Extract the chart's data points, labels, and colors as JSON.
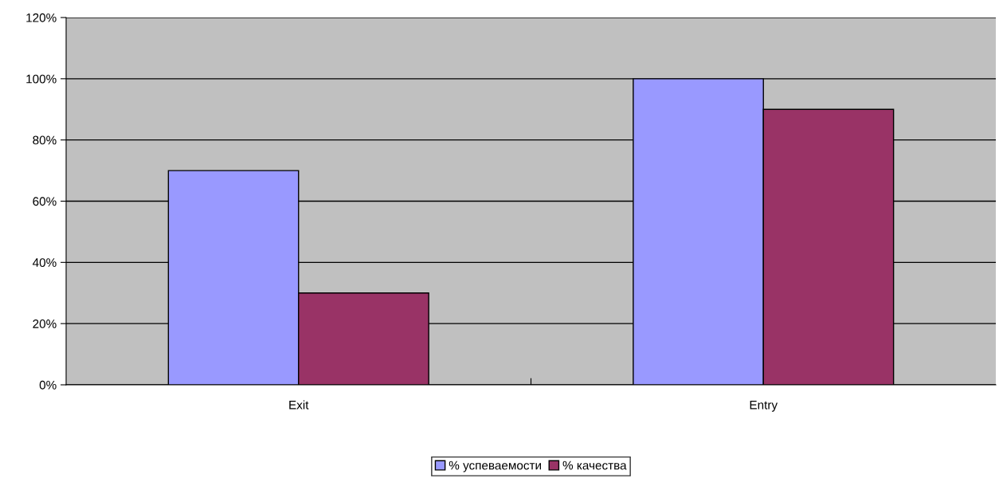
{
  "chart_data": {
    "type": "bar",
    "categories": [
      "Exit",
      "Entry"
    ],
    "series": [
      {
        "name": "% успеваемости",
        "color": "#9999ff",
        "values": [
          70,
          100
        ]
      },
      {
        "name": "% качества",
        "color": "#993366",
        "values": [
          30,
          90
        ]
      }
    ],
    "ylim": [
      0,
      120
    ],
    "yticks": [
      {
        "value": 0,
        "label": "0%"
      },
      {
        "value": 20,
        "label": "20%"
      },
      {
        "value": 40,
        "label": "40%"
      },
      {
        "value": 60,
        "label": "60%"
      },
      {
        "value": 80,
        "label": "80%"
      },
      {
        "value": 100,
        "label": "100%"
      },
      {
        "value": 120,
        "label": "120%"
      }
    ],
    "grid": "y",
    "legend": "bottom"
  }
}
